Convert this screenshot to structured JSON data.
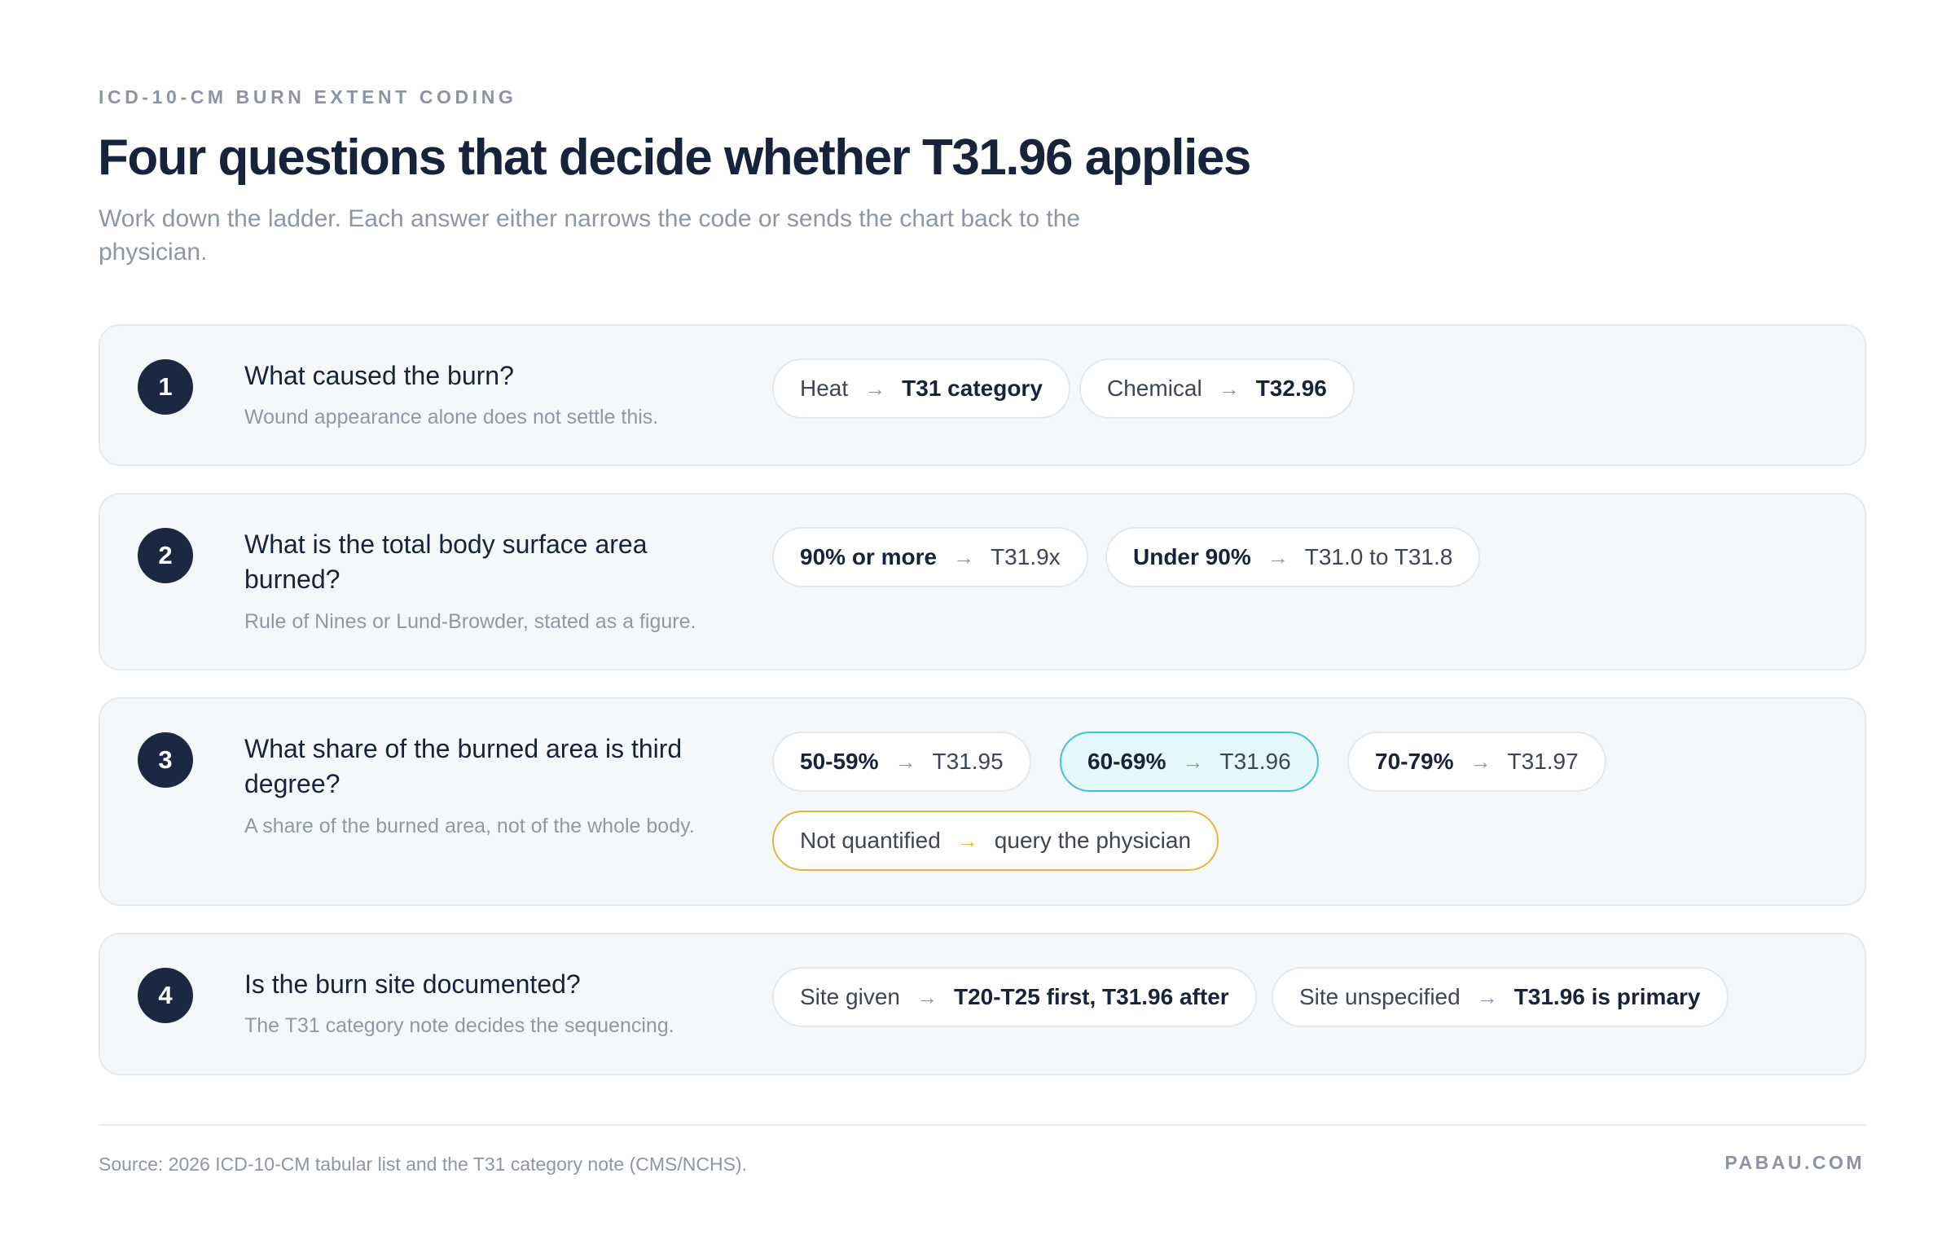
{
  "header": {
    "eyebrow": "ICD-10-CM BURN EXTENT CODING",
    "title": "Four questions that decide whether T31.96 applies",
    "subtitle": "Work down the ladder. Each answer either narrows the code or sends the chart back to the physician."
  },
  "steps": [
    {
      "number": "1",
      "question": "What caused the burn?",
      "hint": "Wound appearance alone does not settle this.",
      "options": [
        {
          "condition": "Heat",
          "arrow": "→",
          "result": "T31 category"
        },
        {
          "condition": "Chemical",
          "arrow": "→",
          "result": "T32.96"
        }
      ]
    },
    {
      "number": "2",
      "question": "What is the total body surface area burned?",
      "hint": "Rule of Nines or Lund-Browder, stated as a figure.",
      "options": [
        {
          "condition": "90% or more",
          "arrow": "→",
          "result": "T31.9x"
        },
        {
          "condition": "Under 90%",
          "arrow": "→",
          "result": "T31.0 to T31.8"
        }
      ]
    },
    {
      "number": "3",
      "question": "What share of the burned area is third degree?",
      "hint": "A share of the burned area, not of the whole body.",
      "options": [
        {
          "condition": "50-59%",
          "arrow": "→",
          "result": "T31.95"
        },
        {
          "condition": "60-69%",
          "arrow": "→",
          "result": "T31.96"
        },
        {
          "condition": "70-79%",
          "arrow": "→",
          "result": "T31.97"
        },
        {
          "condition": "Not quantified",
          "arrow": "→",
          "result": "query the physician"
        }
      ]
    },
    {
      "number": "4",
      "question": "Is the burn site documented?",
      "hint": "The T31 category note decides the sequencing.",
      "options": [
        {
          "condition": "Site given",
          "arrow": "→",
          "result": "T20-T25 first, T31.96 after"
        },
        {
          "condition": "Site unspecified",
          "arrow": "→",
          "result": "T31.96 is primary"
        }
      ]
    }
  ],
  "footer": {
    "source": "Source: 2026 ICD-10-CM tabular list and the T31 category note (CMS/NCHS).",
    "brand": "PABAU.COM"
  },
  "colors": {
    "accent_teal": "#3ec3cf",
    "highlight_bg": "#e4f7fa",
    "warning_amber": "#eeb13b",
    "badge_navy": "#1b2841"
  }
}
